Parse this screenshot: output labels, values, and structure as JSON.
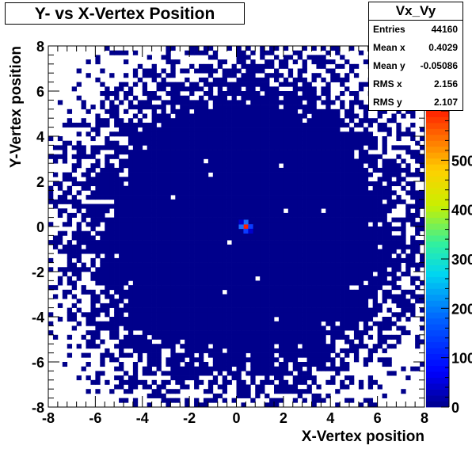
{
  "chart_data": {
    "type": "heatmap",
    "title": "Y- vs X-Vertex Position",
    "xlabel": "X-Vertex position",
    "ylabel": "Y-Vertex position",
    "xlim": [
      -8,
      8
    ],
    "ylim": [
      -8,
      8
    ],
    "x_ticks": [
      "-8",
      "-6",
      "-4",
      "-2",
      "0",
      "2",
      "4",
      "6",
      "8"
    ],
    "y_ticks": [
      "-8",
      "-6",
      "-4",
      "-2",
      "0",
      "2",
      "4",
      "6",
      "8"
    ],
    "colorbar_ticks": [
      "0",
      "100",
      "200",
      "300",
      "400",
      "500"
    ],
    "colorbar_range": [
      0,
      600
    ],
    "grid": false,
    "bins": 80,
    "peak": {
      "x": 0.4,
      "y": 0.0,
      "value": 560
    },
    "colors": {
      "low": "#00008b",
      "high": "#ff2000"
    }
  },
  "stats": {
    "name": "Vx_Vy",
    "rows": [
      {
        "label": "Entries",
        "value": "44160"
      },
      {
        "label": "Mean x",
        "value": "0.4029"
      },
      {
        "label": "Mean y",
        "value": "-0.05086"
      },
      {
        "label": "RMS x",
        "value": "2.156"
      },
      {
        "label": "RMS y",
        "value": "2.107"
      }
    ]
  }
}
